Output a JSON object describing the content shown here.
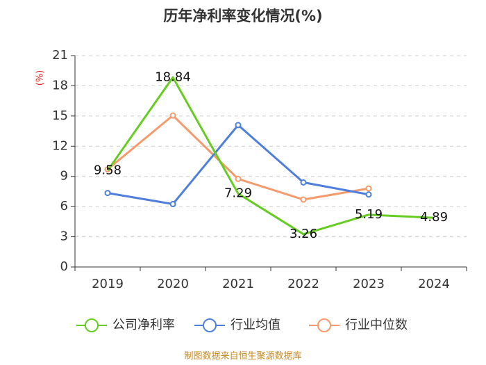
{
  "chart_data": {
    "type": "line",
    "title": "历年净利率变化情况(%)",
    "ylabel": "(%)",
    "categories": [
      "2019",
      "2020",
      "2021",
      "2022",
      "2023",
      "2024"
    ],
    "ylim": [
      0,
      21
    ],
    "yticks": [
      0,
      3,
      6,
      9,
      12,
      15,
      18,
      21
    ],
    "grid": true,
    "legend_position": "bottom",
    "series": [
      {
        "name": "公司净利率",
        "color": "#66cc22",
        "values": [
          9.58,
          18.84,
          7.29,
          3.26,
          5.19,
          4.89
        ],
        "labels": [
          "9.58",
          "18.84",
          "7.29",
          "3.26",
          "5.19",
          "4.89"
        ],
        "show_labels": true,
        "markers": false
      },
      {
        "name": "行业均值",
        "color": "#4f7fdc",
        "values": [
          7.35,
          6.25,
          14.1,
          8.4,
          7.2,
          null
        ],
        "show_labels": false,
        "markers": true
      },
      {
        "name": "行业中位数",
        "color": "#f59a6c",
        "values": [
          9.7,
          15.05,
          8.75,
          6.7,
          7.8,
          null
        ],
        "show_labels": false,
        "markers": true
      }
    ]
  },
  "source": "制图数据来自恒生聚源数据库"
}
